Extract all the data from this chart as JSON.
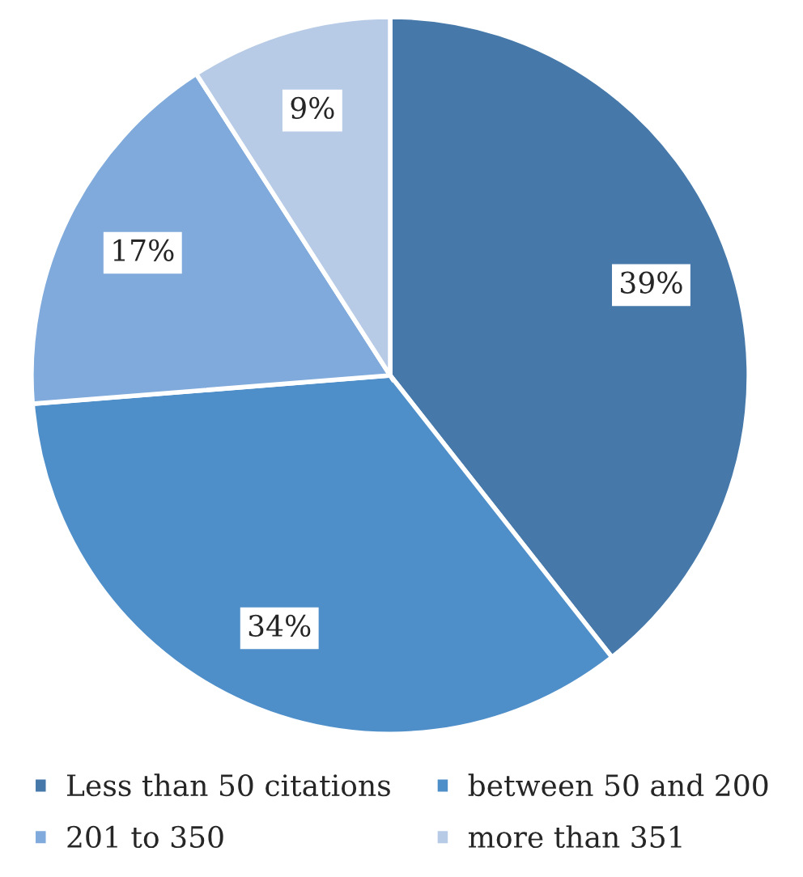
{
  "chart_data": {
    "type": "pie",
    "categories": [
      "Less than 50 citations",
      "between 50 and 200",
      "201 to 350",
      "more than 351"
    ],
    "values": [
      39,
      34,
      17,
      9
    ],
    "colors": [
      "#4679aa",
      "#4f8fc9",
      "#7faadb",
      "#b7cbe6"
    ],
    "value_labels": [
      "39%",
      "34%",
      "17%",
      "9%"
    ],
    "legend": "bottom"
  }
}
